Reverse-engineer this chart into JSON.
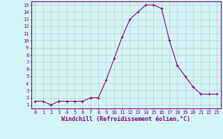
{
  "x": [
    0,
    1,
    2,
    3,
    4,
    5,
    6,
    7,
    8,
    9,
    10,
    11,
    12,
    13,
    14,
    15,
    16,
    17,
    18,
    19,
    20,
    21,
    22,
    23
  ],
  "y": [
    1.5,
    1.5,
    1.0,
    1.5,
    1.5,
    1.5,
    1.5,
    2.0,
    2.0,
    4.5,
    7.5,
    10.5,
    13.0,
    14.0,
    15.0,
    15.0,
    14.5,
    10.0,
    6.5,
    5.0,
    3.5,
    2.5,
    2.5,
    2.5
  ],
  "line_color": "#800080",
  "marker": "+",
  "marker_size": 3,
  "background_color": "#d4f5f5",
  "grid_color": "#b0c8c8",
  "xlabel": "Windchill (Refroidissement éolien,°C)",
  "xlabel_fontsize": 6,
  "ylabel_ticks": [
    1,
    2,
    3,
    4,
    5,
    6,
    7,
    8,
    9,
    10,
    11,
    12,
    13,
    14,
    15
  ],
  "xlim": [
    -0.5,
    23.5
  ],
  "ylim": [
    0.5,
    15.5
  ],
  "xtick_labels": [
    "0",
    "1",
    "2",
    "3",
    "4",
    "5",
    "6",
    "7",
    "8",
    "9",
    "10",
    "11",
    "12",
    "13",
    "14",
    "15",
    "16",
    "17",
    "18",
    "19",
    "20",
    "21",
    "22",
    "23"
  ],
  "tick_color": "#800080",
  "tick_fontsize": 5,
  "spine_color": "#800080",
  "line_width": 0.8,
  "marker_edge_width": 0.8
}
